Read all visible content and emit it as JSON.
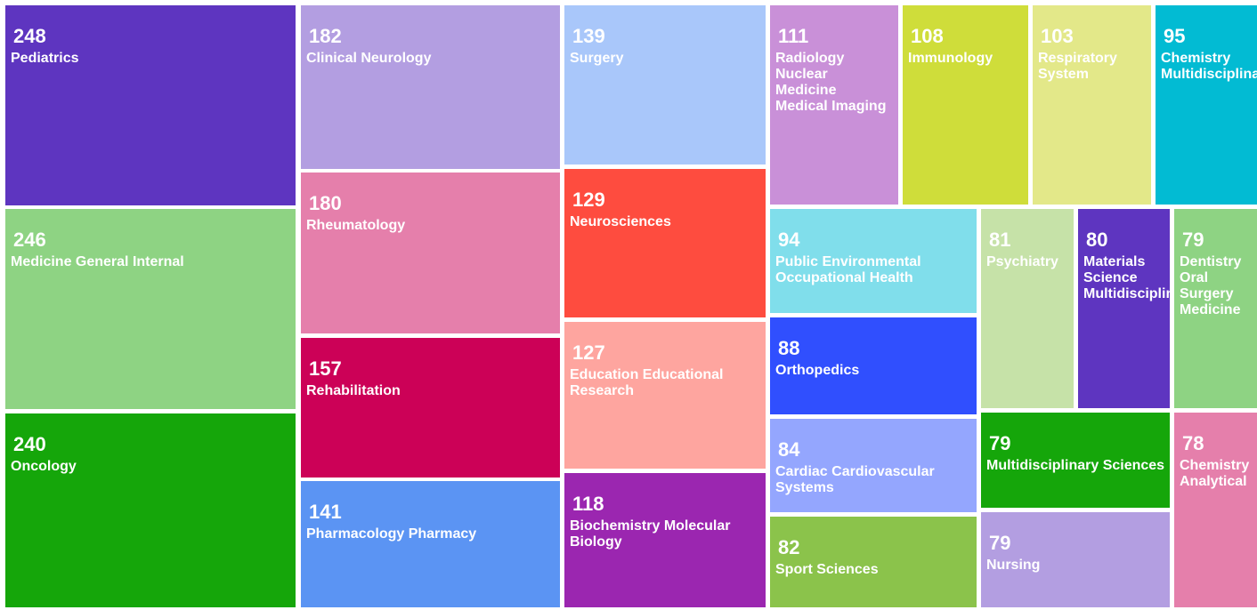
{
  "chart_data": {
    "type": "treemap",
    "items": [
      {
        "label": "Pediatrics",
        "value": 248,
        "color": "#5e35c0"
      },
      {
        "label": "Medicine General Internal",
        "value": 246,
        "color": "#8ed383"
      },
      {
        "label": "Oncology",
        "value": 240,
        "color": "#15a60a"
      },
      {
        "label": "Clinical Neurology",
        "value": 182,
        "color": "#b39ee1"
      },
      {
        "label": "Rheumatology",
        "value": 180,
        "color": "#e57fab"
      },
      {
        "label": "Rehabilitation",
        "value": 157,
        "color": "#cc0157"
      },
      {
        "label": "Pharmacology Pharmacy",
        "value": 141,
        "color": "#5b94f3"
      },
      {
        "label": "Surgery",
        "value": 139,
        "color": "#a9c7fa"
      },
      {
        "label": "Neurosciences",
        "value": 129,
        "color": "#fe4c3f"
      },
      {
        "label": "Education Educational\nResearch",
        "value": 127,
        "color": "#fea59f"
      },
      {
        "label": "Biochemistry Molecular\nBiology",
        "value": 118,
        "color": "#9b26b0"
      },
      {
        "label": "Radiology\nNuclear\nMedicine\nMedical Imaging",
        "value": 111,
        "color": "#c990d8"
      },
      {
        "label": "Immunology",
        "value": 108,
        "color": "#cfdd3a"
      },
      {
        "label": "Respiratory\nSystem",
        "value": 103,
        "color": "#e3e889"
      },
      {
        "label": "Chemistry\nMultidisciplinary",
        "value": 95,
        "color": "#02bbd3"
      },
      {
        "label": "Public Environmental\nOccupational Health",
        "value": 94,
        "color": "#80deeb"
      },
      {
        "label": "Orthopedics",
        "value": 88,
        "color": "#304ffe"
      },
      {
        "label": "Cardiac Cardiovascular\nSystems",
        "value": 84,
        "color": "#94a6fe"
      },
      {
        "label": "Sport Sciences",
        "value": 82,
        "color": "#8bc34b"
      },
      {
        "label": "Psychiatry",
        "value": 81,
        "color": "#c6e2a8"
      },
      {
        "label": "Materials\nScience\nMultidisciplinary",
        "value": 80,
        "color": "#5e35c0"
      },
      {
        "label": "Dentistry\nOral\nSurgery\nMedicine",
        "value": 79,
        "color": "#8ed383"
      },
      {
        "label": "Multidisciplinary Sciences",
        "value": 79,
        "color": "#15a60a"
      },
      {
        "label": "Nursing",
        "value": 79,
        "color": "#b39ee1"
      },
      {
        "label": "Chemistry\nAnalytical",
        "value": 78,
        "color": "#e57fab"
      }
    ]
  }
}
